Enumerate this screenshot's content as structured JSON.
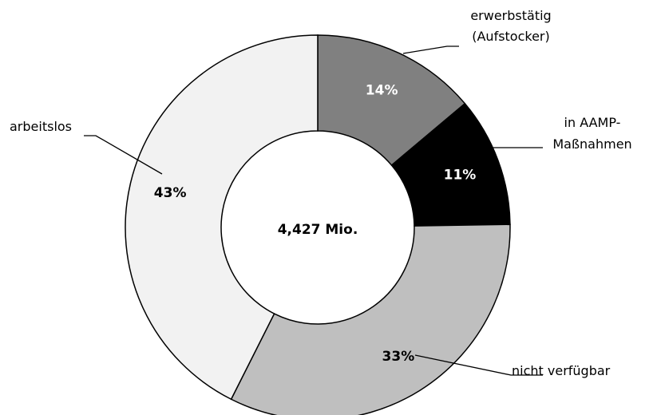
{
  "chart_data": {
    "type": "pie",
    "center_label": "4,427 Mio.",
    "slices": [
      {
        "label_lines": [
          "erwerbstätig",
          "(Aufstocker)"
        ],
        "value": 14,
        "display": "14%",
        "color": "#808080",
        "text_color": "#ffffff"
      },
      {
        "label_lines": [
          "in AAMP-",
          "Maßnahmen"
        ],
        "value": 11,
        "display": "11%",
        "color": "#000000",
        "text_color": "#ffffff"
      },
      {
        "label_lines": [
          "nicht verfügbar"
        ],
        "value": 33,
        "display": "33%",
        "color": "#bfbfbf",
        "text_color": "#000000"
      },
      {
        "label_lines": [
          "arbeitslos"
        ],
        "value": 43,
        "display": "43%",
        "color": "#f2f2f2",
        "text_color": "#000000"
      }
    ]
  }
}
